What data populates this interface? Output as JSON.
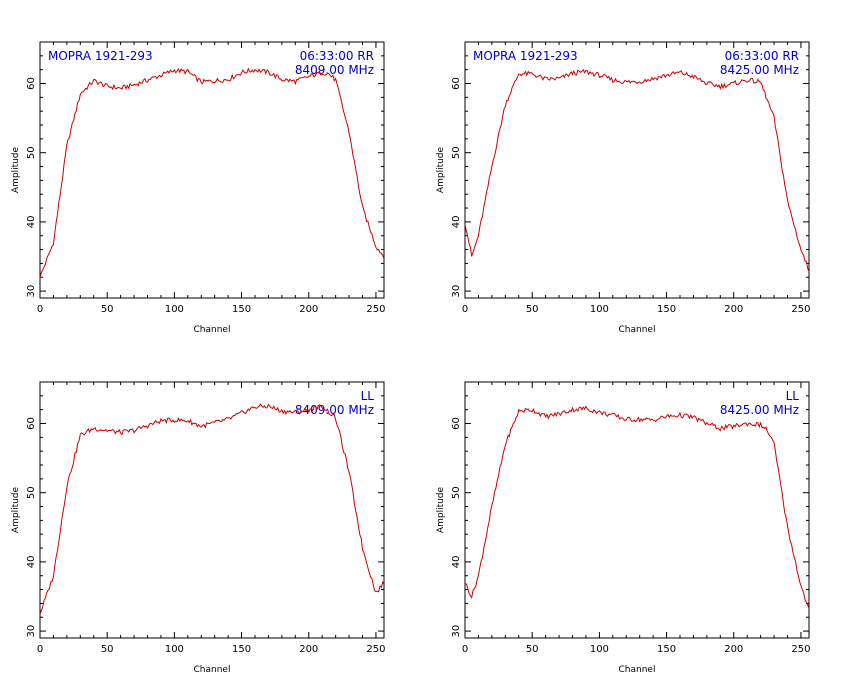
{
  "colors": {
    "background": "#ffffff",
    "axes": "#000000",
    "line": "#cc0000",
    "annotation": "#0000cc"
  },
  "chart_data": [
    {
      "type": "line",
      "title": "",
      "xlabel": "Channel",
      "ylabel": "Amplitude",
      "xlim": [
        0,
        256
      ],
      "ylim": [
        29,
        66
      ],
      "xticks": [
        "0",
        "50",
        "100",
        "150",
        "200",
        "250"
      ],
      "yticks": [
        "30",
        "40",
        "50",
        "60"
      ],
      "annotations": {
        "source": "MOPRA 1921-293",
        "time_pol": "06:33:00  RR",
        "freq": "8409.00 MHz"
      },
      "series": [
        {
          "x": [
            0,
            10,
            20,
            30,
            40,
            50,
            60,
            70,
            80,
            90,
            100,
            110,
            120,
            130,
            140,
            150,
            160,
            170,
            180,
            190,
            200,
            210,
            215,
            220,
            230,
            240,
            250,
            256
          ],
          "y": [
            32,
            37,
            51,
            58.5,
            60.4,
            59.6,
            59.3,
            59.8,
            60.5,
            61.2,
            61.9,
            61.7,
            60.2,
            60.4,
            60.6,
            61.6,
            62.0,
            61.6,
            60.6,
            60.3,
            61.0,
            61.6,
            61.4,
            60.5,
            53,
            42,
            36.5,
            35
          ]
        }
      ]
    },
    {
      "type": "line",
      "title": "",
      "xlabel": "Channel",
      "ylabel": "Amplitude",
      "xlim": [
        0,
        256
      ],
      "ylim": [
        29,
        66
      ],
      "xticks": [
        "0",
        "50",
        "100",
        "150",
        "200",
        "250"
      ],
      "yticks": [
        "30",
        "40",
        "50",
        "60"
      ],
      "annotations": {
        "source": "MOPRA 1921-293",
        "time_pol": "06:33:00  RR",
        "freq": "8425.00 MHz"
      },
      "series": [
        {
          "x": [
            0,
            5,
            10,
            20,
            30,
            40,
            50,
            60,
            70,
            80,
            90,
            100,
            110,
            120,
            130,
            140,
            150,
            160,
            170,
            180,
            190,
            200,
            210,
            220,
            230,
            240,
            250,
            256
          ],
          "y": [
            40,
            35,
            38,
            48,
            57,
            61.4,
            61.4,
            60.6,
            60.7,
            61.5,
            61.7,
            61.2,
            60.5,
            60.2,
            60.3,
            60.7,
            61.2,
            61.6,
            61.0,
            60.0,
            59.6,
            60.0,
            60.5,
            60.2,
            55,
            43,
            36,
            33
          ]
        }
      ]
    },
    {
      "type": "line",
      "title": "",
      "xlabel": "Channel",
      "ylabel": "Amplitude",
      "xlim": [
        0,
        256
      ],
      "ylim": [
        29,
        66
      ],
      "xticks": [
        "0",
        "50",
        "100",
        "150",
        "200",
        "250"
      ],
      "yticks": [
        "30",
        "40",
        "50",
        "60"
      ],
      "annotations": {
        "source": "",
        "time_pol": "LL",
        "freq": "8409.00 MHz"
      },
      "series": [
        {
          "x": [
            0,
            10,
            20,
            30,
            40,
            50,
            60,
            70,
            80,
            90,
            100,
            110,
            120,
            130,
            140,
            150,
            160,
            170,
            180,
            190,
            200,
            210,
            220,
            230,
            240,
            250,
            256
          ],
          "y": [
            32.5,
            38,
            51,
            58.3,
            59.3,
            59.0,
            58.7,
            59.0,
            59.7,
            60.4,
            60.5,
            60.4,
            59.6,
            60.1,
            60.6,
            61.5,
            62.4,
            62.5,
            61.8,
            61.6,
            62.0,
            62.5,
            60.8,
            53,
            42,
            35.5,
            37
          ]
        }
      ]
    },
    {
      "type": "line",
      "title": "",
      "xlabel": "Channel",
      "ylabel": "Amplitude",
      "xlim": [
        0,
        256
      ],
      "ylim": [
        29,
        66
      ],
      "xticks": [
        "0",
        "50",
        "100",
        "150",
        "200",
        "250"
      ],
      "yticks": [
        "30",
        "40",
        "50",
        "60"
      ],
      "annotations": {
        "source": "",
        "time_pol": "LL",
        "freq": "8425.00 MHz"
      },
      "series": [
        {
          "x": [
            0,
            5,
            10,
            20,
            30,
            40,
            50,
            60,
            70,
            80,
            90,
            100,
            110,
            120,
            130,
            140,
            150,
            160,
            170,
            180,
            190,
            200,
            210,
            220,
            225,
            230,
            240,
            250,
            256
          ],
          "y": [
            37,
            35,
            38,
            48,
            57,
            61.8,
            62.0,
            61.0,
            61.4,
            62.0,
            62.2,
            61.6,
            61.2,
            60.6,
            60.6,
            60.5,
            61.0,
            61.2,
            60.9,
            60.0,
            59.3,
            59.6,
            60.0,
            59.8,
            59.0,
            57,
            45,
            36.5,
            33
          ]
        }
      ]
    }
  ]
}
